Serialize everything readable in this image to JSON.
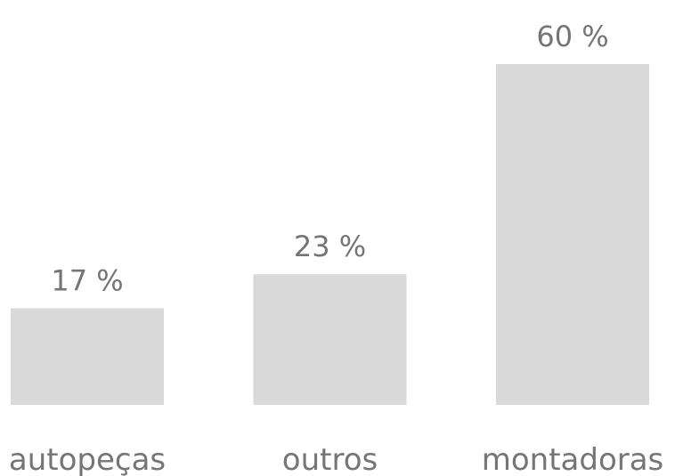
{
  "chart_data": {
    "type": "bar",
    "categories": [
      "autopeças",
      "outros",
      "montadoras"
    ],
    "values": [
      17,
      23,
      60
    ],
    "value_labels": [
      "17 %",
      "23 %",
      "60 %"
    ],
    "color": "#d9d9d9"
  }
}
